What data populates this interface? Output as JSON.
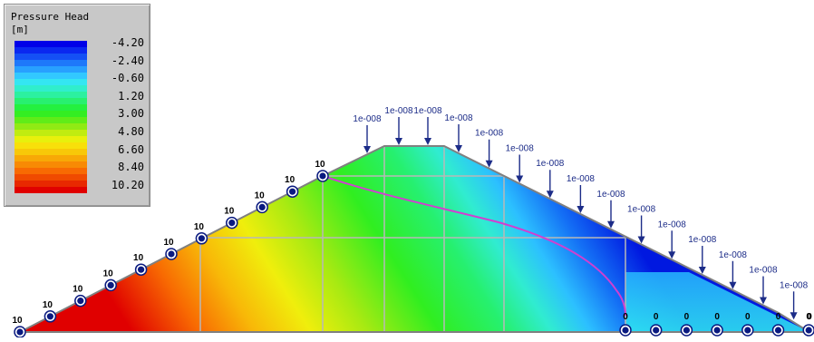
{
  "legend": {
    "title": "Pressure Head",
    "unit": "[m]",
    "labels": [
      "-4.20",
      "-2.40",
      "-0.60",
      "1.20",
      "3.00",
      "4.80",
      "6.60",
      "8.40",
      "10.20"
    ],
    "colors": [
      "#0000e8",
      "#0a28f0",
      "#1450f5",
      "#1e78fa",
      "#28a0ff",
      "#32c8ff",
      "#34e6f2",
      "#30eecc",
      "#2cf0a0",
      "#28f070",
      "#24f040",
      "#34ee22",
      "#60ec18",
      "#90ea14",
      "#c0ec10",
      "#e8f00c",
      "#f8e00a",
      "#f8c808",
      "#f8a806",
      "#f88a04",
      "#f86a02",
      "#f04a00",
      "#e82800",
      "#e00000"
    ]
  },
  "boundary": {
    "head_value": "10",
    "zero_value": "0",
    "flux_value": "1e-008",
    "head_count": 11,
    "zero_count": 7,
    "flux_count": 15
  },
  "colors": {
    "dam_outline": "#808080",
    "grid_lines": "#b8b8b8",
    "seepage_line": "#d040d0",
    "marker_fill": "#0a1a80",
    "arrow": "#1c2c88",
    "label_text": "#000000",
    "flux_label": "#1c2c88"
  }
}
